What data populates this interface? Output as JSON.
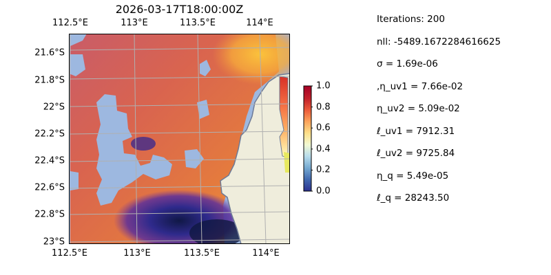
{
  "title": "2026-03-17T18:00:00Z",
  "map": {
    "lon_ticks": [
      "112.5°E",
      "113°E",
      "113.5°E",
      "114°E"
    ],
    "lat_ticks": [
      "21.6°S",
      "21.8°S",
      "22°S",
      "22.2°S",
      "22.4°S",
      "22.6°S",
      "22.8°S",
      "23°S"
    ],
    "lon_range": [
      112.5,
      114.2
    ],
    "lat_range": [
      -23.0,
      -21.5
    ],
    "colormap": "plasma-like (blue-purple-red-orange-yellow)",
    "land_color": "#efeddc",
    "mask_color": "#9db8e0",
    "coastline_color": "#6d7a96",
    "grid": true
  },
  "colorbar": {
    "ticks": [
      "0.0",
      "0.2",
      "0.4",
      "0.6",
      "0.8",
      "1.0"
    ],
    "range": [
      0,
      1
    ],
    "colors": [
      "#2c3191",
      "#4169b0",
      "#75a9d1",
      "#b7dcec",
      "#f2f9d3",
      "#fde08a",
      "#fca55c",
      "#ec5c3b",
      "#c2212b",
      "#a50026"
    ]
  },
  "stats": [
    "Iterations: 200",
    "nll: -5489.1672284616625",
    "σ = 1.69e-06",
    ",η_uv1 = 7.66e-02",
    "η_uv2 = 5.09e-02",
    "ℓ_uv1 = 7912.31",
    "ℓ_uv2 = 9725.84",
    "η_q = 5.49e-05",
    "ℓ_q = 28243.50"
  ]
}
